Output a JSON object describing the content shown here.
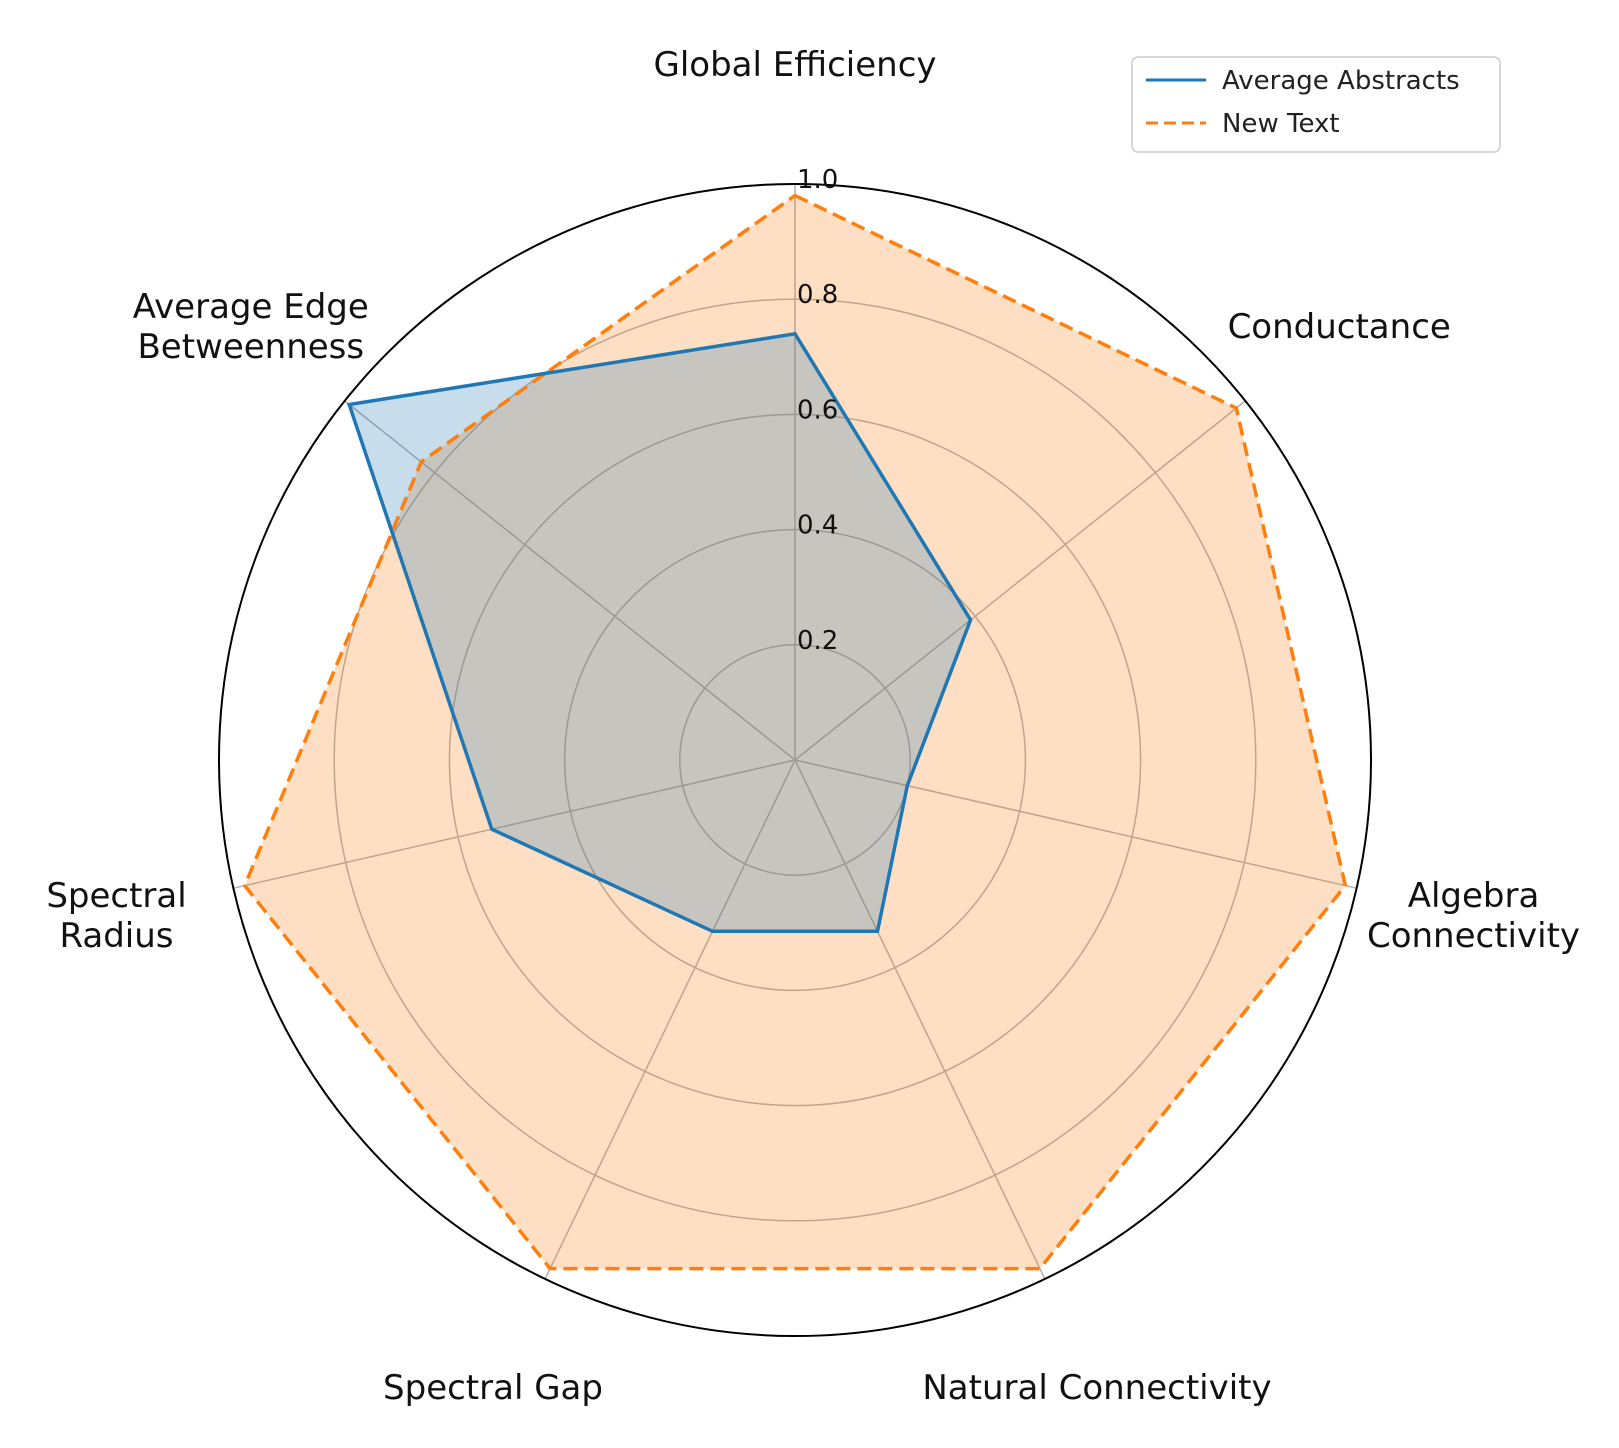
{
  "chart_data": {
    "type": "radar",
    "axes": [
      "Global Efficiency",
      "Conductance",
      "Algebra Connectivity",
      "Natural Connectivity",
      "Spectral Gap",
      "Spectral Radius",
      "Average Edge Betweenness"
    ],
    "axis_label_lines": [
      [
        "Global Efficiency"
      ],
      [
        "Conductance"
      ],
      [
        "Algebra",
        "Connectivity"
      ],
      [
        "Natural Connectivity"
      ],
      [
        "Spectral Gap"
      ],
      [
        "Spectral",
        "Radius"
      ],
      [
        "Average Edge",
        "Betweenness"
      ]
    ],
    "rlim": [
      0,
      1.0
    ],
    "r_ticks": [
      0.2,
      0.4,
      0.6,
      0.8,
      1.0
    ],
    "r_tick_labels": [
      "0.2",
      "0.4",
      "0.6",
      "0.8",
      "1.0"
    ],
    "grid": true,
    "legend_position": "top-right",
    "series": [
      {
        "name": "Average Abstracts",
        "values": [
          0.74,
          0.39,
          0.2,
          0.33,
          0.33,
          0.54,
          0.99
        ],
        "color": "#1f77b4",
        "line_style": "solid",
        "fill_color": "#1f77b4"
      },
      {
        "name": "New Text",
        "values": [
          0.98,
          0.98,
          0.98,
          0.98,
          0.98,
          0.98,
          0.83
        ],
        "color": "#ff7f0e",
        "line_style": "dashed",
        "fill_color": "#ff7f0e"
      }
    ]
  }
}
